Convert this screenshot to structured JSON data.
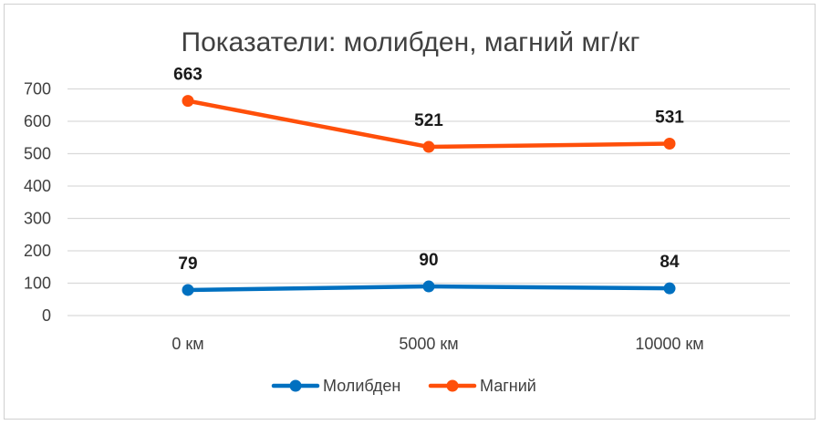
{
  "chart_data": {
    "type": "line",
    "title": "Показатели:  молибден, магний мг/кг",
    "categories": [
      "0 км",
      "5000 км",
      "10000 км"
    ],
    "ylim": [
      0,
      700
    ],
    "yticks": [
      0,
      100,
      200,
      300,
      400,
      500,
      600,
      700
    ],
    "grid": true,
    "legend_position": "bottom",
    "series": [
      {
        "name": "Молибден",
        "values": [
          79,
          90,
          84
        ],
        "color": "#0070c0"
      },
      {
        "name": "Магний",
        "values": [
          663,
          521,
          531
        ],
        "color": "#ff4f0a"
      }
    ]
  }
}
